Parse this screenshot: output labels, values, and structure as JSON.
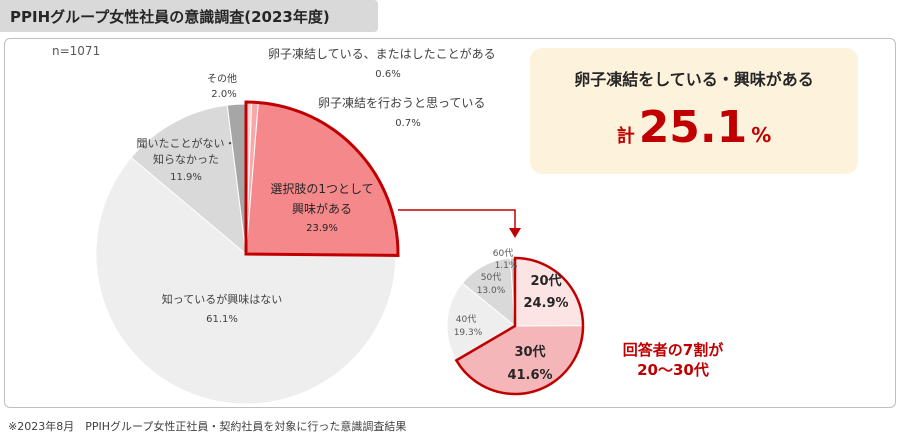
{
  "header": {
    "title": "PPIHグループ女性社員の意識調査(2023年度)"
  },
  "sample": "n=1071",
  "callout": {
    "title": "卵子凍結をしている・興味がある",
    "total_prefix": "計",
    "total_value": "25.1",
    "total_unit": "%"
  },
  "annotation": {
    "line1": "回答者の7割が",
    "line2": "20〜30代"
  },
  "footnote": "※2023年8月　PPIHグループ女性正社員・契約社員を対象に行った意識調査結果",
  "colors": {
    "accent": "#c00000",
    "highlight": "#f4888b",
    "grey_light": "#eeeeee",
    "grey_mid": "#d9d9d9",
    "grey_dark": "#a6a6a6",
    "callout_bg": "#fdf3dd"
  },
  "chart_data": [
    {
      "type": "pie",
      "n": 1071,
      "slices": [
        {
          "label": "卵子凍結している、またはしたことがある",
          "value": 0.6,
          "value_label": "0.6%"
        },
        {
          "label": "卵子凍結を行おうと思っている",
          "value": 0.7,
          "value_label": "0.7%"
        },
        {
          "label_line1": "選択肢の1つとして",
          "label_line2": "興味がある",
          "value": 23.9,
          "value_label": "23.9%"
        },
        {
          "label": "知っているが興味はない",
          "value": 61.1,
          "value_label": "61.1%"
        },
        {
          "label_line1": "聞いたことがない・",
          "label_line2": "知らなかった",
          "value": 11.9,
          "value_label": "11.9%"
        },
        {
          "label": "その他",
          "value": 2.0,
          "value_label": "2.0%"
        }
      ]
    },
    {
      "type": "pie",
      "slices": [
        {
          "label": "20代",
          "value": 24.9,
          "value_label": "24.9%"
        },
        {
          "label": "30代",
          "value": 41.6,
          "value_label": "41.6%"
        },
        {
          "label": "40代",
          "value": 19.3,
          "value_label": "19.3%"
        },
        {
          "label": "50代",
          "value": 13.0,
          "value_label": "13.0%"
        },
        {
          "label": "60代",
          "value": 1.1,
          "value_label": "1.1%"
        }
      ]
    }
  ]
}
